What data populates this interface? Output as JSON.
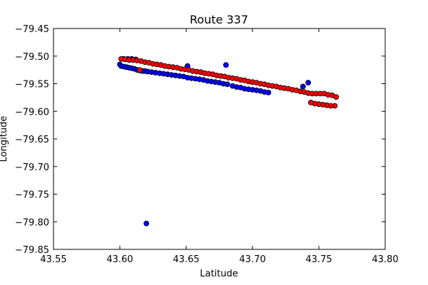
{
  "chart_data": {
    "type": "scatter",
    "title": "Route 337",
    "xlabel": "Latitude",
    "ylabel": "Longitude",
    "xlim": [
      43.55,
      43.8
    ],
    "ylim": [
      -79.85,
      -79.45
    ],
    "xticks": [
      "43.55",
      "43.60",
      "43.65",
      "43.70",
      "43.75",
      "43.80"
    ],
    "yticks": [
      "−79.45",
      "−79.50",
      "−79.55",
      "−79.60",
      "−79.65",
      "−79.70",
      "−79.75",
      "−79.80",
      "−79.85"
    ],
    "grid": false,
    "series": [
      {
        "color": "#0000ff",
        "points": [
          [
            43.6,
            -79.515
          ],
          [
            43.601,
            -79.518
          ],
          [
            43.603,
            -79.519
          ],
          [
            43.605,
            -79.52
          ],
          [
            43.607,
            -79.521
          ],
          [
            43.609,
            -79.522
          ],
          [
            43.611,
            -79.523
          ],
          [
            43.613,
            -79.525
          ],
          [
            43.615,
            -79.526
          ],
          [
            43.617,
            -79.527
          ],
          [
            43.619,
            -79.527
          ],
          [
            43.621,
            -79.528
          ],
          [
            43.624,
            -79.529
          ],
          [
            43.627,
            -79.53
          ],
          [
            43.63,
            -79.531
          ],
          [
            43.633,
            -79.532
          ],
          [
            43.636,
            -79.533
          ],
          [
            43.639,
            -79.534
          ],
          [
            43.642,
            -79.535
          ],
          [
            43.645,
            -79.536
          ],
          [
            43.648,
            -79.537
          ],
          [
            43.651,
            -79.539
          ],
          [
            43.654,
            -79.54
          ],
          [
            43.657,
            -79.541
          ],
          [
            43.66,
            -79.542
          ],
          [
            43.663,
            -79.543
          ],
          [
            43.666,
            -79.545
          ],
          [
            43.669,
            -79.546
          ],
          [
            43.672,
            -79.547
          ],
          [
            43.675,
            -79.548
          ],
          [
            43.678,
            -79.55
          ],
          [
            43.681,
            -79.551
          ],
          [
            43.685,
            -79.554
          ],
          [
            43.688,
            -79.556
          ],
          [
            43.691,
            -79.557
          ],
          [
            43.694,
            -79.559
          ],
          [
            43.697,
            -79.56
          ],
          [
            43.7,
            -79.561
          ],
          [
            43.703,
            -79.562
          ],
          [
            43.706,
            -79.563
          ],
          [
            43.709,
            -79.565
          ],
          [
            43.712,
            -79.566
          ],
          [
            43.603,
            -79.505
          ],
          [
            43.606,
            -79.505
          ],
          [
            43.609,
            -79.505
          ],
          [
            43.612,
            -79.506
          ],
          [
            43.651,
            -79.518
          ],
          [
            43.68,
            -79.516
          ],
          [
            43.738,
            -79.555
          ],
          [
            43.742,
            -79.548
          ],
          [
            43.62,
            -79.803
          ]
        ]
      },
      {
        "color": "#ff0000",
        "points": [
          [
            43.601,
            -79.505
          ],
          [
            43.604,
            -79.506
          ],
          [
            43.607,
            -79.507
          ],
          [
            43.61,
            -79.507
          ],
          [
            43.613,
            -79.508
          ],
          [
            43.616,
            -79.509
          ],
          [
            43.619,
            -79.511
          ],
          [
            43.622,
            -79.512
          ],
          [
            43.625,
            -79.514
          ],
          [
            43.628,
            -79.515
          ],
          [
            43.631,
            -79.516
          ],
          [
            43.634,
            -79.518
          ],
          [
            43.637,
            -79.519
          ],
          [
            43.64,
            -79.52
          ],
          [
            43.643,
            -79.521
          ],
          [
            43.646,
            -79.523
          ],
          [
            43.649,
            -79.524
          ],
          [
            43.652,
            -79.525
          ],
          [
            43.655,
            -79.527
          ],
          [
            43.658,
            -79.528
          ],
          [
            43.661,
            -79.529
          ],
          [
            43.664,
            -79.531
          ],
          [
            43.667,
            -79.532
          ],
          [
            43.67,
            -79.533
          ],
          [
            43.673,
            -79.535
          ],
          [
            43.676,
            -79.536
          ],
          [
            43.679,
            -79.537
          ],
          [
            43.682,
            -79.539
          ],
          [
            43.685,
            -79.54
          ],
          [
            43.688,
            -79.541
          ],
          [
            43.691,
            -79.543
          ],
          [
            43.694,
            -79.544
          ],
          [
            43.697,
            -79.546
          ],
          [
            43.7,
            -79.547
          ],
          [
            43.703,
            -79.548
          ],
          [
            43.706,
            -79.55
          ],
          [
            43.709,
            -79.551
          ],
          [
            43.712,
            -79.553
          ],
          [
            43.715,
            -79.554
          ],
          [
            43.718,
            -79.555
          ],
          [
            43.721,
            -79.557
          ],
          [
            43.724,
            -79.558
          ],
          [
            43.727,
            -79.559
          ],
          [
            43.73,
            -79.561
          ],
          [
            43.733,
            -79.562
          ],
          [
            43.736,
            -79.564
          ],
          [
            43.739,
            -79.565
          ],
          [
            43.742,
            -79.567
          ],
          [
            43.745,
            -79.568
          ],
          [
            43.748,
            -79.568
          ],
          [
            43.751,
            -79.568
          ],
          [
            43.754,
            -79.568
          ],
          [
            43.757,
            -79.57
          ],
          [
            43.76,
            -79.571
          ],
          [
            43.763,
            -79.574
          ],
          [
            43.762,
            -79.59
          ],
          [
            43.759,
            -79.59
          ],
          [
            43.756,
            -79.589
          ],
          [
            43.753,
            -79.588
          ],
          [
            43.75,
            -79.587
          ],
          [
            43.747,
            -79.586
          ],
          [
            43.744,
            -79.584
          ],
          [
            43.615,
            -79.525
          ]
        ]
      }
    ]
  }
}
